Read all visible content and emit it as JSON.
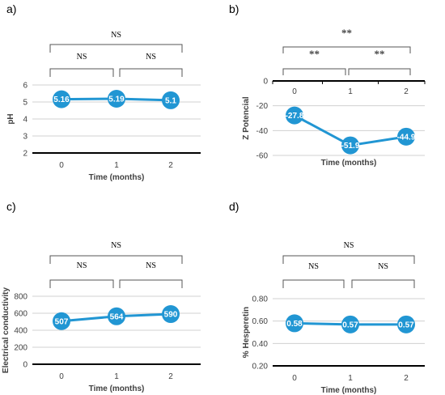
{
  "colors": {
    "series": "#2196d3",
    "grid": "#d0d0d0",
    "axis": "#000000",
    "bracket": "#555555"
  },
  "chart_data": [
    {
      "id": "a",
      "panel_label": "a)",
      "type": "line",
      "categories": [
        "0",
        "1",
        "2"
      ],
      "values": [
        5.16,
        5.19,
        5.1
      ],
      "data_labels": [
        "5.16",
        "5.19",
        "5.1"
      ],
      "xlabel": "Time (months)",
      "ylabel": "pH",
      "ylim": [
        2,
        6
      ],
      "yticks": [
        "2",
        "3",
        "4",
        "5",
        "6"
      ],
      "grid": true,
      "x_axis_position": "bottom",
      "significance": {
        "outer": "NS",
        "left": "NS",
        "right": "NS"
      }
    },
    {
      "id": "b",
      "panel_label": "b)",
      "type": "line",
      "categories": [
        "0",
        "1",
        "2"
      ],
      "values": [
        -27.8,
        -51.9,
        -44.9
      ],
      "data_labels": [
        "-27.8",
        "-51.9",
        "-44.9"
      ],
      "xlabel": "Time (months)",
      "ylabel": "Z Potencial",
      "ylim": [
        -60,
        0
      ],
      "yticks": [
        "-60",
        "-40",
        "-20",
        "0"
      ],
      "grid": true,
      "x_axis_position": "top",
      "significance": {
        "outer": "**",
        "left": "**",
        "right": "**"
      }
    },
    {
      "id": "c",
      "panel_label": "c)",
      "type": "line",
      "categories": [
        "0",
        "1",
        "2"
      ],
      "values": [
        507,
        564,
        590
      ],
      "data_labels": [
        "507",
        "564",
        "590"
      ],
      "xlabel": "Time (months)",
      "ylabel": "Electrical conductivity",
      "ylim": [
        0,
        800
      ],
      "yticks": [
        "0",
        "200",
        "400",
        "600",
        "800"
      ],
      "grid": true,
      "x_axis_position": "bottom",
      "significance": {
        "outer": "NS",
        "left": "NS",
        "right": "NS"
      }
    },
    {
      "id": "d",
      "panel_label": "d)",
      "type": "line",
      "categories": [
        "0",
        "1",
        "2"
      ],
      "values": [
        0.58,
        0.57,
        0.57
      ],
      "data_labels": [
        "0.58",
        "0.57",
        "0.57"
      ],
      "xlabel": "Time (months)",
      "ylabel": "% Hesperetin",
      "ylim": [
        0.2,
        0.8
      ],
      "yticks": [
        "0.20",
        "0.40",
        "0.60",
        "0.80"
      ],
      "grid": true,
      "x_axis_position": "bottom",
      "significance": {
        "outer": "NS",
        "left": "NS",
        "right": "NS"
      }
    }
  ]
}
